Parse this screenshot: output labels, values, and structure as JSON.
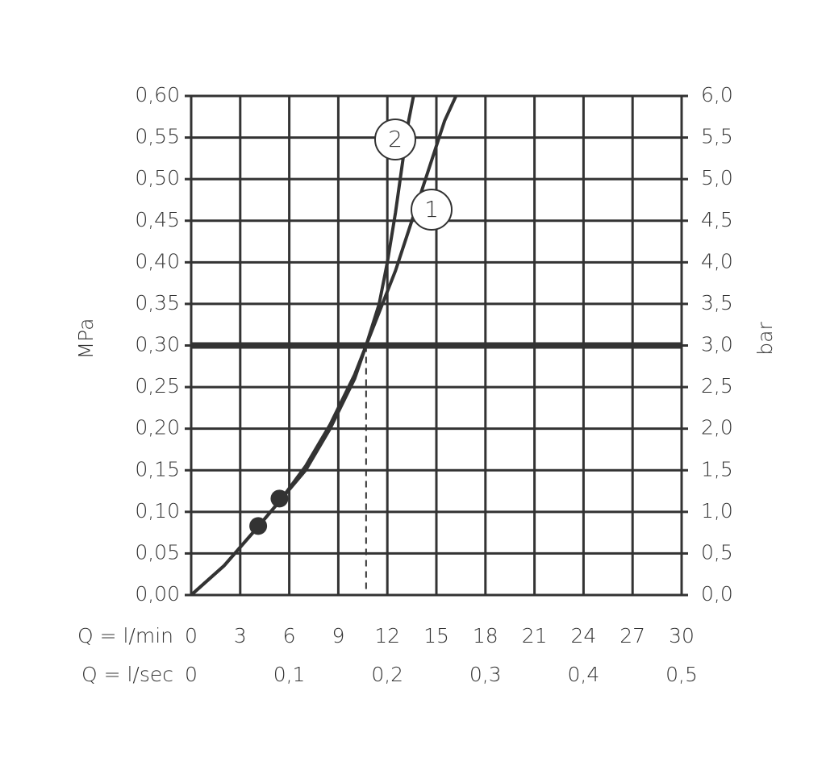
{
  "chart_data": {
    "type": "line",
    "y_label": "MPa",
    "y2_label": "bar",
    "x_label": "Q = l/min",
    "x2_label": "Q = l/sec",
    "xlim": [
      0,
      30
    ],
    "xticks": [
      0,
      3,
      6,
      9,
      12,
      15,
      18,
      21,
      24,
      27,
      30
    ],
    "x2lim": [
      0,
      0.5
    ],
    "x2ticks": [
      0,
      {
        "value": 0.1,
        "label": "0,1"
      },
      {
        "value": 0.2,
        "label": "0,2"
      },
      {
        "value": 0.3,
        "label": "0,3"
      },
      {
        "value": 0.4,
        "label": "0,4"
      },
      {
        "value": 0.5,
        "label": "0,5"
      }
    ],
    "ylim": [
      0,
      0.6
    ],
    "yticks": [
      {
        "value": 0,
        "label": "0,00"
      },
      {
        "value": 0.05,
        "label": "0,05"
      },
      {
        "value": 0.1,
        "label": "0,10"
      },
      {
        "value": 0.15,
        "label": "0,15"
      },
      {
        "value": 0.2,
        "label": "0,20"
      },
      {
        "value": 0.25,
        "label": "0,25"
      },
      {
        "value": 0.3,
        "label": "0,30"
      },
      {
        "value": 0.35,
        "label": "0,35"
      },
      {
        "value": 0.4,
        "label": "0,40"
      },
      {
        "value": 0.45,
        "label": "0,45"
      },
      {
        "value": 0.5,
        "label": "0,50"
      },
      {
        "value": 0.55,
        "label": "0,55"
      },
      {
        "value": 0.6,
        "label": "0,60"
      }
    ],
    "y2lim": [
      0,
      6
    ],
    "y2ticks": [
      {
        "value": 0,
        "label": "0,0"
      },
      {
        "value": 0.5,
        "label": "0,5"
      },
      {
        "value": 1,
        "label": "1,0"
      },
      {
        "value": 1.5,
        "label": "1,5"
      },
      {
        "value": 2,
        "label": "2,0"
      },
      {
        "value": 2.5,
        "label": "2,5"
      },
      {
        "value": 3,
        "label": "3,0"
      },
      {
        "value": 3.5,
        "label": "3,5"
      },
      {
        "value": 4,
        "label": "4,0"
      },
      {
        "value": 4.5,
        "label": "4,5"
      },
      {
        "value": 5,
        "label": "5,0"
      },
      {
        "value": 5.5,
        "label": "5,5"
      },
      {
        "value": 6,
        "label": "6,0"
      }
    ],
    "grid": true,
    "reference_line": 0.3,
    "drop_line": {
      "x": 10.7,
      "y": 0.3
    },
    "series": [
      {
        "name": "1",
        "color": "#333333",
        "x": [
          0,
          2,
          4,
          5.5,
          7,
          8.5,
          10,
          10.7,
          11.5,
          12.5,
          13.5,
          14.5,
          15.5,
          16.2
        ],
        "values": [
          0,
          0.035,
          0.08,
          0.115,
          0.15,
          0.2,
          0.26,
          0.3,
          0.34,
          0.39,
          0.45,
          0.51,
          0.57,
          0.6
        ]
      },
      {
        "name": "2",
        "color": "#333333",
        "x": [
          0,
          2,
          4,
          5.5,
          7,
          8.5,
          10,
          10.7,
          11.5,
          12,
          12.5,
          13,
          13.3,
          13.6
        ],
        "values": [
          0,
          0.035,
          0.08,
          0.115,
          0.155,
          0.205,
          0.265,
          0.3,
          0.35,
          0.4,
          0.46,
          0.53,
          0.57,
          0.6
        ]
      }
    ],
    "markers": {
      "x": [
        4.1,
        5.4
      ],
      "values": [
        0.083,
        0.116
      ]
    }
  }
}
